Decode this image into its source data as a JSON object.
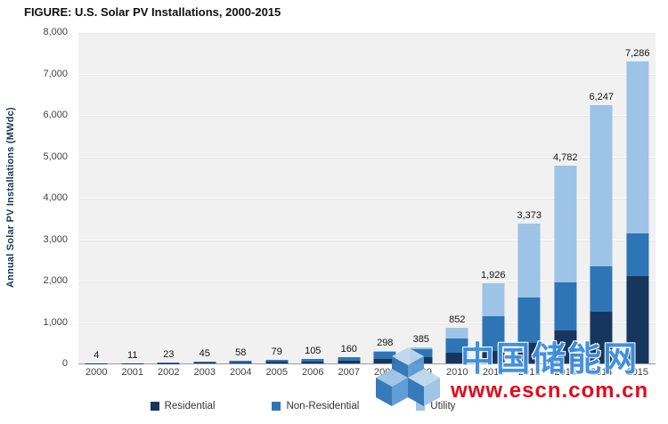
{
  "title": "FIGURE: U.S. Solar PV Installations, 2000-2015",
  "chart_data": {
    "type": "bar",
    "stacked": true,
    "title": "FIGURE: U.S. Solar PV Installations, 2000-2015",
    "categories": [
      "2000",
      "2001",
      "2002",
      "2003",
      "2004",
      "2005",
      "2006",
      "2007",
      "2008",
      "2009",
      "2010",
      "2011",
      "2012",
      "2013",
      "2014",
      "2015"
    ],
    "series": [
      {
        "name": "Residential",
        "color": "#17365D",
        "values": [
          2,
          5,
          10,
          20,
          25,
          35,
          45,
          70,
          110,
          160,
          250,
          300,
          500,
          800,
          1250,
          2100
        ]
      },
      {
        "name": "Non-Residential",
        "color": "#2E75B6",
        "values": [
          2,
          6,
          13,
          25,
          33,
          44,
          60,
          90,
          170,
          190,
          350,
          850,
          1100,
          1150,
          1100,
          1050
        ]
      },
      {
        "name": "Utility",
        "color": "#9DC3E6",
        "values": [
          0,
          0,
          0,
          0,
          0,
          0,
          0,
          0,
          18,
          35,
          252,
          776,
          1773,
          2832,
          3897,
          4136
        ]
      }
    ],
    "totals": [
      4,
      11,
      23,
      45,
      58,
      79,
      105,
      160,
      298,
      385,
      852,
      1926,
      3373,
      4782,
      6247,
      7286
    ],
    "total_labels": [
      "4",
      "11",
      "23",
      "45",
      "58",
      "79",
      "105",
      "160",
      "298",
      "385",
      "852",
      "1,926",
      "3,373",
      "4,782",
      "6,247",
      "7,286"
    ],
    "xlabel": "",
    "ylabel": "Annual Solar PV Installations (MWdc)",
    "ylim": [
      0,
      8000
    ],
    "ytick_step": 1000,
    "yticks": [
      "0",
      "1,000",
      "2,000",
      "3,000",
      "4,000",
      "5,000",
      "6,000",
      "7,000",
      "8,000"
    ],
    "legend_position": "bottom",
    "grid": true,
    "plot_bg": "#F1F1F1"
  },
  "watermark": {
    "site_name": "中国储能网",
    "url": "www.escn.com.cn",
    "name_color": "#3E8EDE",
    "url_color": "#E60012",
    "logo_colors": {
      "light": "#BDD7EE",
      "mid": "#5B9BD5",
      "dark": "#2E75B6"
    }
  }
}
